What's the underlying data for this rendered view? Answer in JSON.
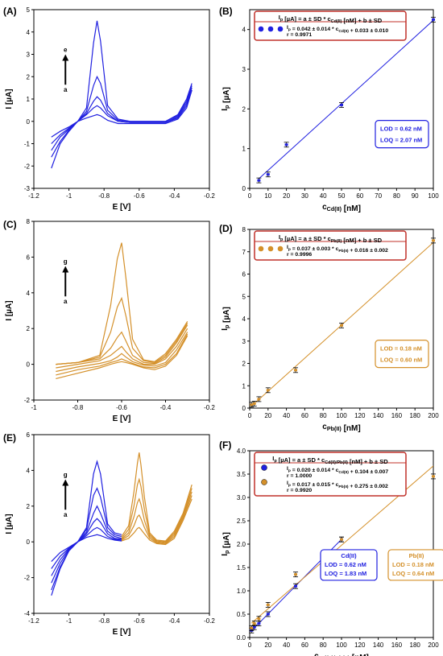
{
  "colors": {
    "blue": "#2020e0",
    "orange": "#d4902a",
    "axis": "#000000",
    "box_border": "#c0302a"
  },
  "chart_data": [
    {
      "panel_label": "(A)",
      "type": "line",
      "xlabel": "E [V]",
      "ylabel": "I [µA]",
      "xlim": [
        -1.2,
        -0.2
      ],
      "ylim": [
        -3,
        5
      ],
      "xticks": [
        "-1.2",
        "-1",
        "-0.8",
        "-0.6",
        "-0.4",
        "-0.2"
      ],
      "yticks": [
        "-3",
        "-2",
        "-1",
        "0",
        "1",
        "2",
        "3",
        "4",
        "5"
      ],
      "arrow": {
        "from": "a",
        "to": "e"
      },
      "series": [
        {
          "color": "blue",
          "x": [
            -1.1,
            -1.05,
            -1.0,
            -0.95,
            -0.9,
            -0.86,
            -0.84,
            -0.82,
            -0.78,
            -0.72,
            -0.65,
            -0.55,
            -0.45,
            -0.38,
            -0.33,
            -0.3
          ],
          "y": [
            -0.7,
            -0.45,
            -0.25,
            0.0,
            0.15,
            0.25,
            0.3,
            0.25,
            0.05,
            -0.1,
            -0.1,
            -0.1,
            -0.1,
            0.1,
            0.6,
            1.4
          ]
        },
        {
          "color": "blue",
          "x": [
            -1.1,
            -1.05,
            -1.0,
            -0.95,
            -0.9,
            -0.86,
            -0.84,
            -0.82,
            -0.78,
            -0.72,
            -0.65,
            -0.55,
            -0.45,
            -0.38,
            -0.33,
            -0.3
          ],
          "y": [
            -1.0,
            -0.6,
            -0.3,
            0.0,
            0.3,
            0.6,
            0.7,
            0.6,
            0.25,
            0.0,
            -0.05,
            -0.05,
            -0.05,
            0.15,
            0.7,
            1.4
          ]
        },
        {
          "color": "blue",
          "x": [
            -1.1,
            -1.05,
            -1.0,
            -0.95,
            -0.9,
            -0.86,
            -0.84,
            -0.82,
            -0.78,
            -0.72,
            -0.65,
            -0.55,
            -0.45,
            -0.38,
            -0.33,
            -0.3
          ],
          "y": [
            -1.3,
            -0.7,
            -0.35,
            0.0,
            0.35,
            0.9,
            1.1,
            0.95,
            0.35,
            0.0,
            -0.05,
            -0.05,
            -0.05,
            0.2,
            0.8,
            1.5
          ]
        },
        {
          "color": "blue",
          "x": [
            -1.1,
            -1.05,
            -1.0,
            -0.95,
            -0.9,
            -0.86,
            -0.84,
            -0.82,
            -0.78,
            -0.72,
            -0.65,
            -0.55,
            -0.45,
            -0.38,
            -0.33,
            -0.3
          ],
          "y": [
            -1.6,
            -0.9,
            -0.4,
            0.0,
            0.45,
            1.6,
            2.0,
            1.7,
            0.5,
            0.05,
            0.0,
            0.0,
            0.0,
            0.25,
            0.9,
            1.6
          ]
        },
        {
          "color": "blue",
          "x": [
            -1.1,
            -1.05,
            -1.0,
            -0.95,
            -0.9,
            -0.86,
            -0.84,
            -0.82,
            -0.78,
            -0.72,
            -0.65,
            -0.55,
            -0.45,
            -0.38,
            -0.33,
            -0.3
          ],
          "y": [
            -2.1,
            -1.0,
            -0.45,
            0.0,
            0.6,
            3.5,
            4.5,
            3.6,
            0.7,
            0.1,
            0.0,
            0.0,
            0.0,
            0.3,
            1.0,
            1.7
          ]
        }
      ]
    },
    {
      "panel_label": "(B)",
      "type": "scatter",
      "xlabel": "cCd(II) [nM]",
      "ylabel": "Ip [µA]",
      "xlim": [
        0,
        100
      ],
      "ylim": [
        0,
        4.5
      ],
      "xticks": [
        "0",
        "10",
        "20",
        "30",
        "40",
        "50",
        "60",
        "70",
        "80",
        "90",
        "100"
      ],
      "yticks": [
        "0",
        "1",
        "2",
        "3",
        "4"
      ],
      "series": [
        {
          "color": "blue",
          "x": [
            5,
            10,
            20,
            50,
            100
          ],
          "y": [
            0.2,
            0.35,
            1.1,
            2.1,
            4.25
          ]
        }
      ],
      "fit": {
        "slope": 0.042,
        "intercept": 0.033,
        "x": [
          5,
          100
        ]
      },
      "equation_box": {
        "header": "Ip [µA] = a ± SD * cCd(II) [nM] + b ± SD",
        "line1": "Ip = 0.042 ± 0.014 * cCd(II) + 0.033 ± 0.010",
        "line2": "r = 0.9971"
      },
      "lod": "LOD = 0.62 nM",
      "loq": "LOQ = 2.07 nM"
    },
    {
      "panel_label": "(C)",
      "type": "line",
      "xlabel": "E [V]",
      "ylabel": "I [µA]",
      "xlim": [
        -1.0,
        -0.2
      ],
      "ylim": [
        -2,
        8
      ],
      "xticks": [
        "-1",
        "-0.8",
        "-0.6",
        "-0.4",
        "-0.2"
      ],
      "yticks": [
        "-2",
        "0",
        "2",
        "4",
        "6",
        "8"
      ],
      "arrow": {
        "from": "a",
        "to": "g"
      },
      "series": [
        {
          "color": "orange",
          "x": [
            -0.9,
            -0.8,
            -0.7,
            -0.65,
            -0.62,
            -0.6,
            -0.58,
            -0.55,
            -0.5,
            -0.45,
            -0.4,
            -0.35,
            -0.3
          ],
          "y": [
            -0.8,
            -0.5,
            -0.2,
            0.0,
            0.1,
            0.15,
            0.1,
            0.0,
            -0.2,
            -0.3,
            -0.1,
            0.5,
            1.6
          ]
        },
        {
          "color": "orange",
          "x": [
            -0.9,
            -0.8,
            -0.7,
            -0.65,
            -0.62,
            -0.6,
            -0.58,
            -0.55,
            -0.5,
            -0.45,
            -0.4,
            -0.35,
            -0.3
          ],
          "y": [
            -0.6,
            -0.3,
            -0.1,
            0.1,
            0.2,
            0.3,
            0.2,
            0.05,
            -0.15,
            -0.2,
            0.0,
            0.6,
            1.7
          ]
        },
        {
          "color": "orange",
          "x": [
            -0.9,
            -0.8,
            -0.7,
            -0.65,
            -0.62,
            -0.6,
            -0.58,
            -0.55,
            -0.5,
            -0.45,
            -0.4,
            -0.35,
            -0.3
          ],
          "y": [
            -0.4,
            -0.15,
            0.05,
            0.2,
            0.4,
            0.6,
            0.4,
            0.15,
            -0.05,
            -0.1,
            0.1,
            0.8,
            1.8
          ]
        },
        {
          "color": "orange",
          "x": [
            -0.9,
            -0.8,
            -0.7,
            -0.65,
            -0.62,
            -0.6,
            -0.58,
            -0.55,
            -0.5,
            -0.45,
            -0.4,
            -0.35,
            -0.3
          ],
          "y": [
            -0.2,
            0.0,
            0.2,
            0.5,
            0.8,
            1.0,
            0.7,
            0.3,
            0.0,
            0.0,
            0.3,
            1.0,
            2.0
          ]
        },
        {
          "color": "orange",
          "x": [
            -0.9,
            -0.8,
            -0.7,
            -0.65,
            -0.62,
            -0.6,
            -0.58,
            -0.55,
            -0.5,
            -0.45,
            -0.4,
            -0.35,
            -0.3
          ],
          "y": [
            0.0,
            0.1,
            0.3,
            0.9,
            1.5,
            1.8,
            1.3,
            0.5,
            0.1,
            0.05,
            0.4,
            1.2,
            2.2
          ]
        },
        {
          "color": "orange",
          "x": [
            -0.9,
            -0.8,
            -0.7,
            -0.65,
            -0.62,
            -0.6,
            -0.58,
            -0.55,
            -0.5,
            -0.45,
            -0.4,
            -0.35,
            -0.3
          ],
          "y": [
            0.0,
            0.1,
            0.4,
            1.8,
            3.2,
            3.7,
            2.7,
            0.9,
            0.2,
            0.1,
            0.5,
            1.3,
            2.3
          ]
        },
        {
          "color": "orange",
          "x": [
            -0.9,
            -0.8,
            -0.7,
            -0.65,
            -0.62,
            -0.6,
            -0.58,
            -0.55,
            -0.5,
            -0.45,
            -0.4,
            -0.35,
            -0.3
          ],
          "y": [
            0.0,
            0.1,
            0.5,
            3.3,
            5.9,
            6.8,
            4.8,
            1.4,
            0.25,
            0.15,
            0.6,
            1.4,
            2.4
          ]
        }
      ]
    },
    {
      "panel_label": "(D)",
      "type": "scatter",
      "xlabel": "cPb(II) [nM]",
      "ylabel": "Ip [µA]",
      "xlim": [
        0,
        200
      ],
      "ylim": [
        0,
        8
      ],
      "xticks": [
        "0",
        "20",
        "40",
        "60",
        "80",
        "100",
        "120",
        "140",
        "160",
        "180",
        "200"
      ],
      "yticks": [
        "0",
        "1",
        "2",
        "3",
        "4",
        "5",
        "6",
        "7",
        "8"
      ],
      "series": [
        {
          "color": "orange",
          "x": [
            2,
            5,
            10,
            20,
            50,
            100,
            200
          ],
          "y": [
            0.15,
            0.2,
            0.4,
            0.8,
            1.7,
            3.7,
            7.5
          ]
        }
      ],
      "fit": {
        "slope": 0.037,
        "intercept": 0.016,
        "x": [
          2,
          200
        ]
      },
      "equation_box": {
        "header": "Ip [µA] = a ± SD * cPb(II) [nM] + b ± SD",
        "line1": "Ip = 0.037 ± 0.003 * cPb(II) + 0.016 ± 0.002",
        "line2": "r = 0.9996"
      },
      "lod": "LOD = 0.18 nM",
      "loq": "LOQ = 0.60 nM"
    },
    {
      "panel_label": "(E)",
      "type": "line",
      "xlabel": "E [V]",
      "ylabel": "I [µA]",
      "xlim": [
        -1.2,
        -0.2
      ],
      "ylim": [
        -4,
        6
      ],
      "xticks": [
        "-1.2",
        "-1",
        "-0.8",
        "-0.6",
        "-0.4",
        "-0.2"
      ],
      "yticks": [
        "-4",
        "-2",
        "0",
        "2",
        "4",
        "6"
      ],
      "arrow": {
        "from": "a",
        "to": "g"
      },
      "series": [
        {
          "color": "blue",
          "x": [
            -1.1,
            -1.05,
            -1.0,
            -0.95,
            -0.9,
            -0.86,
            -0.84,
            -0.82,
            -0.78,
            -0.74,
            -0.7
          ],
          "y": [
            -1.1,
            -0.6,
            -0.3,
            0.0,
            0.25,
            0.35,
            0.4,
            0.35,
            0.2,
            0.1,
            0.05
          ]
        },
        {
          "color": "blue",
          "x": [
            -1.1,
            -1.05,
            -1.0,
            -0.95,
            -0.9,
            -0.86,
            -0.84,
            -0.82,
            -0.78,
            -0.74,
            -0.7
          ],
          "y": [
            -1.5,
            -0.8,
            -0.35,
            0.0,
            0.35,
            0.7,
            0.8,
            0.7,
            0.3,
            0.15,
            0.1
          ]
        },
        {
          "color": "blue",
          "x": [
            -1.1,
            -1.05,
            -1.0,
            -0.95,
            -0.9,
            -0.86,
            -0.84,
            -0.82,
            -0.78,
            -0.74,
            -0.7
          ],
          "y": [
            -1.9,
            -1.0,
            -0.4,
            0.0,
            0.45,
            1.1,
            1.3,
            1.1,
            0.45,
            0.2,
            0.15
          ]
        },
        {
          "color": "blue",
          "x": [
            -1.1,
            -1.05,
            -1.0,
            -0.95,
            -0.9,
            -0.86,
            -0.84,
            -0.82,
            -0.78,
            -0.74,
            -0.7
          ],
          "y": [
            -2.3,
            -1.2,
            -0.45,
            0.0,
            0.55,
            1.6,
            2.0,
            1.6,
            0.6,
            0.3,
            0.2
          ]
        },
        {
          "color": "blue",
          "x": [
            -1.1,
            -1.05,
            -1.0,
            -0.95,
            -0.9,
            -0.86,
            -0.84,
            -0.82,
            -0.78,
            -0.74,
            -0.7
          ],
          "y": [
            -2.7,
            -1.4,
            -0.5,
            0.0,
            0.7,
            2.6,
            3.0,
            2.5,
            0.8,
            0.4,
            0.3
          ]
        },
        {
          "color": "blue",
          "x": [
            -1.1,
            -1.05,
            -1.0,
            -0.95,
            -0.9,
            -0.86,
            -0.84,
            -0.82,
            -0.78,
            -0.74,
            -0.7
          ],
          "y": [
            -3.0,
            -1.5,
            -0.5,
            0.0,
            0.8,
            3.8,
            4.5,
            3.8,
            1.0,
            0.5,
            0.4
          ]
        },
        {
          "color": "orange",
          "x": [
            -0.7,
            -0.66,
            -0.63,
            -0.61,
            -0.6,
            -0.59,
            -0.57,
            -0.54,
            -0.5,
            -0.45,
            -0.4,
            -0.35,
            -0.3
          ],
          "y": [
            0.05,
            0.2,
            0.5,
            0.75,
            0.8,
            0.7,
            0.45,
            0.1,
            -0.1,
            -0.15,
            0.2,
            1.2,
            2.4
          ]
        },
        {
          "color": "orange",
          "x": [
            -0.7,
            -0.66,
            -0.63,
            -0.61,
            -0.6,
            -0.59,
            -0.57,
            -0.54,
            -0.5,
            -0.45,
            -0.4,
            -0.35,
            -0.3
          ],
          "y": [
            0.1,
            0.35,
            0.9,
            1.4,
            1.5,
            1.3,
            0.8,
            0.2,
            -0.05,
            -0.1,
            0.3,
            1.3,
            2.6
          ]
        },
        {
          "color": "orange",
          "x": [
            -0.7,
            -0.66,
            -0.63,
            -0.61,
            -0.6,
            -0.59,
            -0.57,
            -0.54,
            -0.5,
            -0.45,
            -0.4,
            -0.35,
            -0.3
          ],
          "y": [
            0.15,
            0.5,
            1.4,
            2.2,
            2.4,
            2.1,
            1.2,
            0.3,
            0.0,
            -0.05,
            0.4,
            1.4,
            2.8
          ]
        },
        {
          "color": "orange",
          "x": [
            -0.7,
            -0.66,
            -0.63,
            -0.61,
            -0.6,
            -0.59,
            -0.57,
            -0.54,
            -0.5,
            -0.45,
            -0.4,
            -0.35,
            -0.3
          ],
          "y": [
            0.2,
            0.7,
            2.0,
            3.2,
            3.5,
            3.1,
            1.8,
            0.4,
            0.05,
            0.0,
            0.5,
            1.5,
            3.0
          ]
        },
        {
          "color": "orange",
          "x": [
            -0.7,
            -0.66,
            -0.63,
            -0.61,
            -0.6,
            -0.59,
            -0.57,
            -0.54,
            -0.5,
            -0.45,
            -0.4,
            -0.35,
            -0.3
          ],
          "y": [
            0.3,
            0.9,
            2.8,
            4.4,
            5.0,
            4.3,
            2.5,
            0.5,
            0.1,
            0.05,
            0.6,
            1.6,
            3.2
          ]
        }
      ]
    },
    {
      "panel_label": "(F)",
      "type": "scatter",
      "xlabel": "cCd(II)/Pb(II) [nM]",
      "ylabel": "Ip [µA]",
      "xlim": [
        0,
        200
      ],
      "ylim": [
        0,
        4.0
      ],
      "xticks": [
        "0",
        "20",
        "40",
        "60",
        "80",
        "100",
        "120",
        "140",
        "160",
        "180",
        "200"
      ],
      "yticks": [
        "0.0",
        "0.5",
        "1.0",
        "1.5",
        "2.0",
        "2.5",
        "3.0",
        "3.5",
        "4.0"
      ],
      "series": [
        {
          "name": "Cd(II)",
          "color": "blue",
          "x": [
            2,
            5,
            10,
            20,
            50,
            100
          ],
          "y": [
            0.15,
            0.22,
            0.3,
            0.5,
            1.1,
            2.1
          ]
        },
        {
          "name": "Pb(II)",
          "color": "orange",
          "x": [
            2,
            5,
            10,
            20,
            50,
            100,
            200
          ],
          "y": [
            0.2,
            0.3,
            0.4,
            0.7,
            1.35,
            2.1,
            3.45
          ]
        }
      ],
      "fits": [
        {
          "color": "blue",
          "slope": 0.02,
          "intercept": 0.104,
          "x": [
            2,
            100
          ]
        },
        {
          "color": "orange",
          "slope": 0.017,
          "intercept": 0.275,
          "x": [
            2,
            200
          ]
        }
      ],
      "equation_box": {
        "header": "Ip [µA] = a ± SD * cCd(II)/Pb(II) [nM] + b ± SD",
        "line1": "Ip = 0.020 ± 0.014 * cCd(II) + 0.104 ± 0.007",
        "line2": "r = 1.0000",
        "line3": "Ip = 0.017 ± 0.015 * cPb(II) + 0.275 ± 0.002",
        "line4": "r = 0.9920"
      },
      "cd_box": {
        "title": "Cd(II)",
        "lod": "LOD = 0.62 nM",
        "loq": "LOQ = 1.83 nM"
      },
      "pb_box": {
        "title": "Pb(II)",
        "lod": "LOD = 0.18 nM",
        "loq": "LOQ = 0.64 nM"
      }
    }
  ]
}
